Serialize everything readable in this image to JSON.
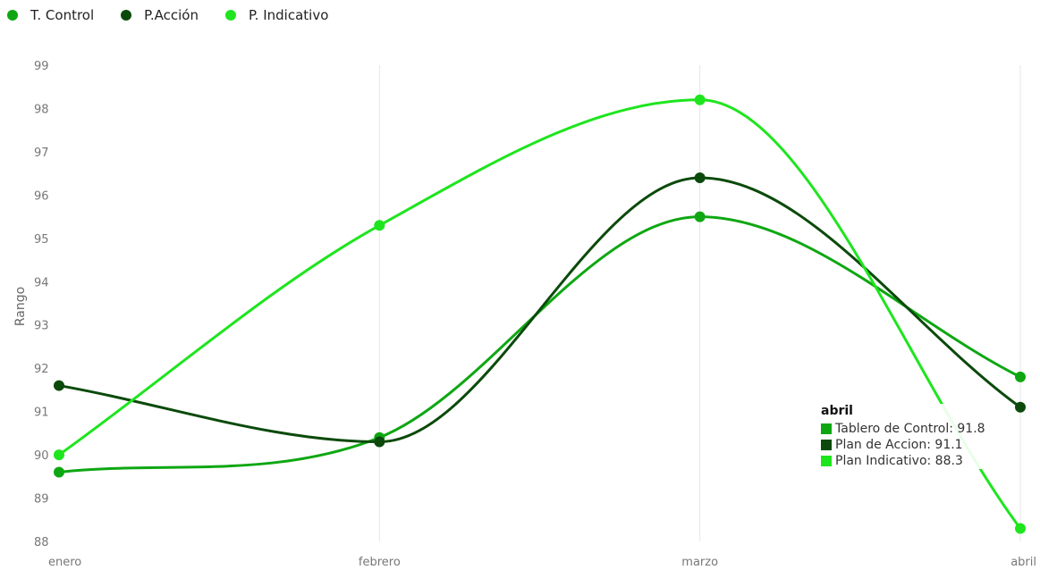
{
  "chart_data": {
    "type": "line",
    "categories": [
      "enero",
      "febrero",
      "marzo",
      "abril"
    ],
    "series": [
      {
        "name": "T. Control",
        "color": "#0ea712",
        "values": [
          89.6,
          90.4,
          95.5,
          91.8
        ]
      },
      {
        "name": "P.Acción",
        "color": "#0b4a0b",
        "values": [
          91.6,
          90.3,
          96.4,
          91.1
        ]
      },
      {
        "name": "P. Indicativo",
        "color": "#1ee51e",
        "values": [
          90.0,
          95.3,
          98.2,
          88.3
        ]
      }
    ],
    "ylabel": "Rango",
    "ylim": [
      88,
      99
    ],
    "yticks": [
      "88",
      "89",
      "90",
      "91",
      "92",
      "93",
      "94",
      "95",
      "96",
      "97",
      "98",
      "99"
    ],
    "grid": "vertical",
    "legend_position": "top-left"
  },
  "tooltip": {
    "title": "abril",
    "rows": [
      {
        "label": "Tablero de Control: 91.8",
        "color": "#0ea712"
      },
      {
        "label": "Plan de Accion: 91.1",
        "color": "#0b4a0b"
      },
      {
        "label": "Plan Indicativo: 88.3",
        "color": "#1ee51e"
      }
    ]
  }
}
